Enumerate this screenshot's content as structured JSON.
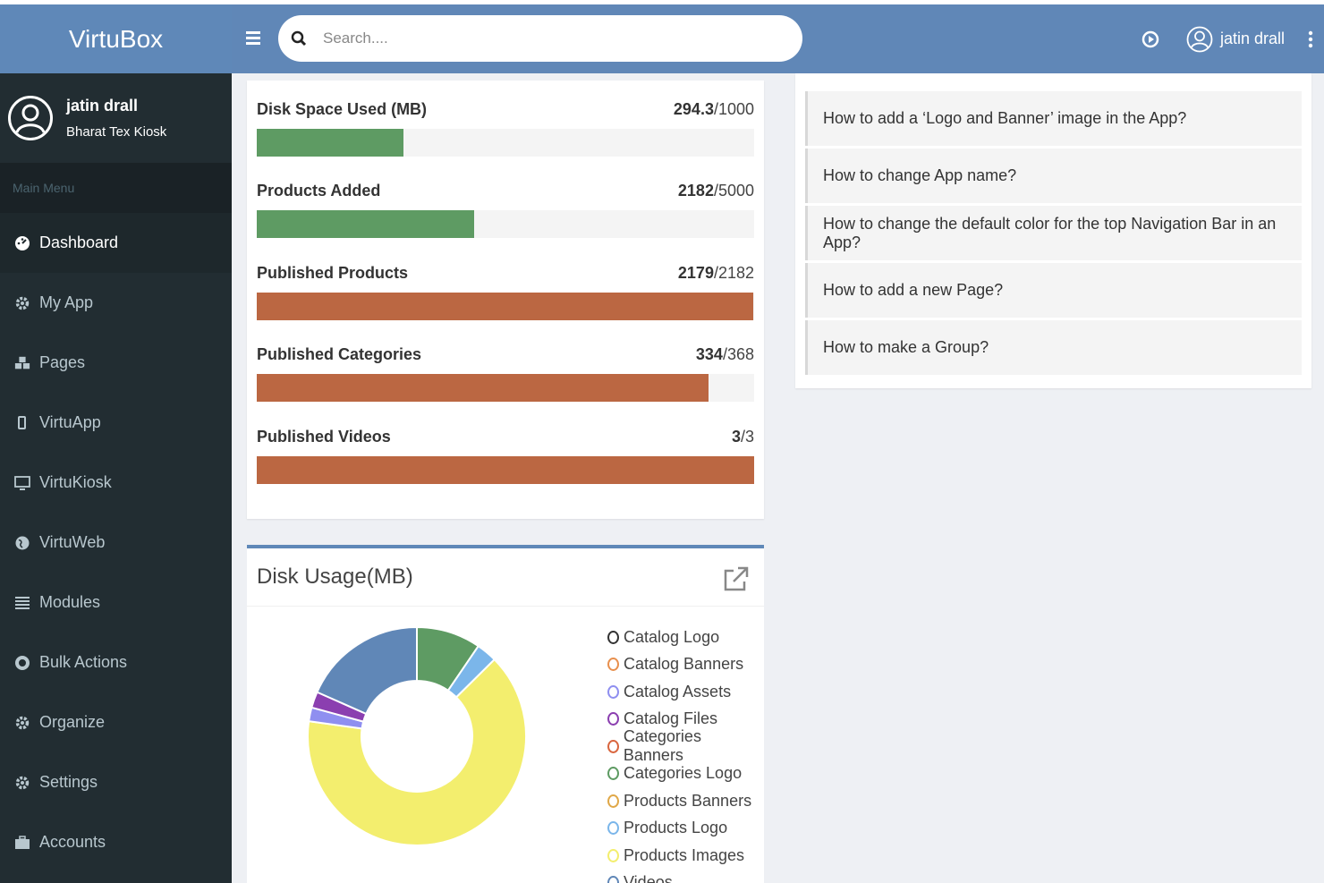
{
  "brand": "VirtuBox",
  "user": {
    "name": "jatin drall",
    "org": "Bharat Tex Kiosk"
  },
  "sidebar": {
    "header": "Main Menu",
    "items": [
      {
        "label": "Dashboard",
        "icon": "dashboard-icon"
      },
      {
        "label": "My App",
        "icon": "gear-icon"
      },
      {
        "label": "Pages",
        "icon": "cubes-icon"
      },
      {
        "label": "VirtuApp",
        "icon": "mobile-icon"
      },
      {
        "label": "VirtuKiosk",
        "icon": "desktop-icon"
      },
      {
        "label": "VirtuWeb",
        "icon": "globe-icon"
      },
      {
        "label": "Modules",
        "icon": "list-icon"
      },
      {
        "label": "Bulk Actions",
        "icon": "lifebuoy-icon"
      },
      {
        "label": "Organize",
        "icon": "gear-icon"
      },
      {
        "label": "Settings",
        "icon": "gear-icon"
      },
      {
        "label": "Accounts",
        "icon": "briefcase-icon"
      }
    ]
  },
  "search": {
    "placeholder": "Search...."
  },
  "topbar": {
    "user": "jatin drall"
  },
  "stats": [
    {
      "label": "Disk Space Used (MB)",
      "value": "294.3",
      "max": "/1000",
      "fraction": 0.2943,
      "color": "#5e9b63"
    },
    {
      "label": "Products Added",
      "value": "2182",
      "max": "/5000",
      "fraction": 0.4364,
      "color": "#5e9b63"
    },
    {
      "label": "Published Products",
      "value": "2179",
      "max": "/2182",
      "fraction": 0.9986,
      "color": "#bb6742"
    },
    {
      "label": "Published Categories",
      "value": "334",
      "max": "/368",
      "fraction": 0.9076,
      "color": "#bb6742"
    },
    {
      "label": "Published Videos",
      "value": "3",
      "max": "/3",
      "fraction": 1.0,
      "color": "#bb6742"
    }
  ],
  "disk": {
    "title": "Disk Usage(MB)"
  },
  "chart_data": {
    "type": "pie",
    "title": "Disk Usage(MB)",
    "donut": true,
    "legend_position": "right",
    "slices": [
      {
        "label": "Catalog Logo",
        "value": 0,
        "color": "#333333"
      },
      {
        "label": "Catalog Banners",
        "value": 0,
        "color": "#e8904e"
      },
      {
        "label": "Catalog Assets",
        "value": 6,
        "color": "#8f8ff0"
      },
      {
        "label": "Catalog Files",
        "value": 7,
        "color": "#8b3fb0"
      },
      {
        "label": "Categories Banners",
        "value": 0,
        "color": "#d9663f"
      },
      {
        "label": "Categories Logo",
        "value": 28,
        "color": "#5e9b63"
      },
      {
        "label": "Products Banners",
        "value": 0,
        "color": "#e0a848"
      },
      {
        "label": "Products Logo",
        "value": 9,
        "color": "#7bb6ea"
      },
      {
        "label": "Products Images",
        "value": 190,
        "color": "#f3ee6e"
      },
      {
        "label": "Videos",
        "value": 54,
        "color": "#6087b7"
      }
    ]
  },
  "faq": [
    "How to add a ‘Logo and Banner’ image in the App?",
    "How to change App name?",
    "How to change the default color for the top Navigation Bar in an App?",
    "How to add a new Page?",
    "How to make a Group?"
  ]
}
